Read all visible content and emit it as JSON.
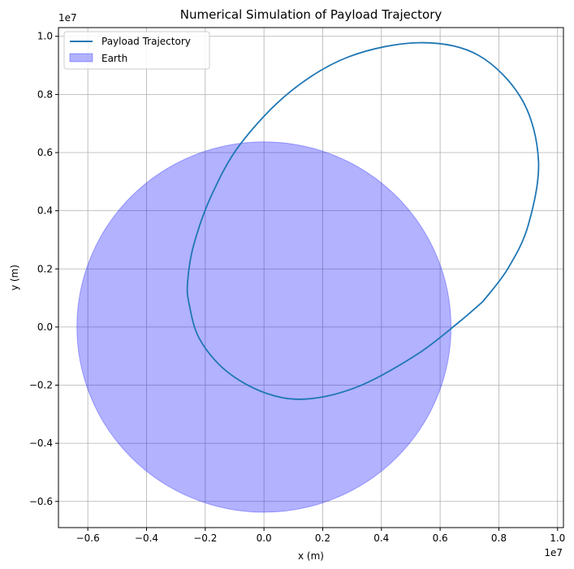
{
  "chart_data": {
    "type": "line",
    "title": "Numerical Simulation of Payload Trajectory",
    "xlabel": "x (m)",
    "ylabel": "y (m)",
    "x_offset_label": "1e7",
    "y_offset_label": "1e7",
    "xlim": [
      -7000000.0,
      10200000.0
    ],
    "ylim": [
      -6900000.0,
      10300000.0
    ],
    "x_ticks": [
      -0.6,
      -0.4,
      -0.2,
      0.0,
      0.2,
      0.4,
      0.6,
      0.8,
      1.0
    ],
    "x_tick_labels": [
      "−0.6",
      "−0.4",
      "−0.2",
      "0.0",
      "0.2",
      "0.4",
      "0.6",
      "0.8",
      "1.0"
    ],
    "y_ticks": [
      -0.6,
      -0.4,
      -0.2,
      0.0,
      0.2,
      0.4,
      0.6,
      0.8,
      1.0
    ],
    "y_tick_labels": [
      "−0.6",
      "−0.4",
      "−0.2",
      "0.0",
      "0.2",
      "0.4",
      "0.6",
      "0.8",
      "1.0"
    ],
    "grid": true,
    "legend": {
      "location": "upper-left",
      "entries": [
        {
          "label": "Payload Trajectory",
          "kind": "line",
          "color": "#1f77b4"
        },
        {
          "label": "Earth",
          "kind": "patch",
          "color": "#0000ff",
          "alpha": 0.3
        }
      ]
    },
    "series": [
      {
        "name": "Payload Trajectory",
        "color": "#1f77b4",
        "points": [
          [
            7450000.0,
            870000.0
          ],
          [
            6620000.0,
            150000.0
          ],
          [
            5200000.0,
            -950000.0
          ],
          [
            3200000.0,
            -2050000.0
          ],
          [
            1400000.0,
            -2480000.0
          ],
          [
            0.0,
            -2250000.0
          ],
          [
            -1300000.0,
            -1500000.0
          ],
          [
            -2200000.0,
            -400000.0
          ],
          [
            -2550000.0,
            800000.0
          ],
          [
            -2600000.0,
            1550000.0
          ],
          [
            -2400000.0,
            2800000.0
          ],
          [
            -1800000.0,
            4500000.0
          ],
          [
            -800000.0,
            6300000.0
          ],
          [
            900000.0,
            8100000.0
          ],
          [
            2900000.0,
            9300000.0
          ],
          [
            5300000.0,
            9780000.0
          ],
          [
            7300000.0,
            9350000.0
          ],
          [
            8800000.0,
            7800000.0
          ],
          [
            9350000.0,
            5700000.0
          ],
          [
            9000000.0,
            3500000.0
          ],
          [
            8300000.0,
            2000000.0
          ],
          [
            7450000.0,
            870000.0
          ]
        ]
      }
    ],
    "earth": {
      "name": "Earth",
      "center": [
        0,
        0
      ],
      "radius": 6371000.0,
      "fill_color": "#0000ff",
      "fill_alpha": 0.3
    }
  }
}
